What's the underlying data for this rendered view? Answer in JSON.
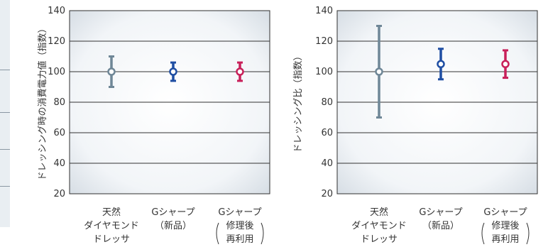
{
  "chart_data": [
    {
      "type": "errorbar",
      "title": "",
      "xlabel": "",
      "ylabel": "ドレッシング時の消費電力値（指数）",
      "ylim": [
        20,
        140
      ],
      "yticks": [
        20,
        40,
        60,
        80,
        100,
        120,
        140
      ],
      "grid": true,
      "categories": [
        [
          "天然",
          "ダイヤモンド",
          "ドレッサ"
        ],
        [
          "Gシャープ",
          "（新品）"
        ],
        [
          "Gシャープ",
          "修理後",
          "再利用"
        ]
      ],
      "colors": [
        "#6f8797",
        "#1f4ea3",
        "#c8205a"
      ],
      "values": [
        100,
        100,
        100
      ],
      "lower": [
        90,
        94,
        94
      ],
      "upper": [
        110,
        106,
        106
      ]
    },
    {
      "type": "errorbar",
      "title": "",
      "xlabel": "",
      "ylabel": "ドレッシング比（指数）",
      "ylim": [
        20,
        140
      ],
      "yticks": [
        20,
        40,
        60,
        80,
        100,
        120,
        140
      ],
      "grid": true,
      "categories": [
        [
          "天然",
          "ダイヤモンド",
          "ドレッサ"
        ],
        [
          "Gシャープ",
          "（新品）"
        ],
        [
          "Gシャープ",
          "修理後",
          "再利用"
        ]
      ],
      "colors": [
        "#6f8797",
        "#1f4ea3",
        "#c8205a"
      ],
      "values": [
        100,
        105,
        105
      ],
      "lower": [
        70,
        95,
        96
      ],
      "upper": [
        130,
        115,
        114
      ]
    }
  ]
}
